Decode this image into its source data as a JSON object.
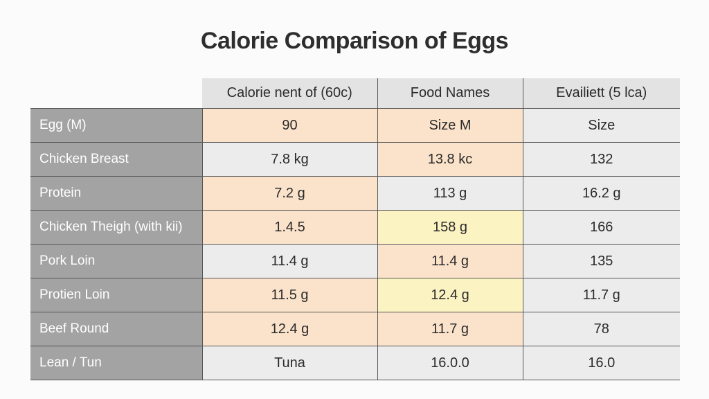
{
  "chart_data": {
    "type": "table",
    "title": "Calorie Comparison of Eggs",
    "columns": [
      "Calorie nent of (60c)",
      "Food Names",
      "Evailiett (5 lca)"
    ],
    "rows": [
      {
        "label": "Egg (M)",
        "cells": [
          "90",
          "Size M",
          "Size"
        ],
        "colors": [
          "#fbe3cb",
          "#fbe3cb",
          "#ececec"
        ]
      },
      {
        "label": "Chicken Breast",
        "cells": [
          "7.8 kg",
          "13.8 kc",
          "132"
        ],
        "colors": [
          "#ececec",
          "#fbe3cb",
          "#ececec"
        ]
      },
      {
        "label": "Protein",
        "cells": [
          "7.2 g",
          "113 g",
          "16.2 g"
        ],
        "colors": [
          "#fbe3cb",
          "#ececec",
          "#ececec"
        ]
      },
      {
        "label": "Chicken Theigh (with kii)",
        "cells": [
          "1.4.5",
          "158 g",
          "166"
        ],
        "colors": [
          "#fbe3cb",
          "#fbf3c2",
          "#ececec"
        ]
      },
      {
        "label": "Pork Loin",
        "cells": [
          "11.4 g",
          "11.4 g",
          "135"
        ],
        "colors": [
          "#ececec",
          "#fbe3cb",
          "#ececec"
        ]
      },
      {
        "label": "Protien Loin",
        "cells": [
          "11.5 g",
          "12.4 g",
          "11.7 g"
        ],
        "colors": [
          "#fbe3cb",
          "#fbf3c2",
          "#ececec"
        ]
      },
      {
        "label": "Beef Round",
        "cells": [
          "12.4 g",
          "11.7 g",
          "78"
        ],
        "colors": [
          "#fbe3cb",
          "#fbe3cb",
          "#ececec"
        ]
      },
      {
        "label": "Lean / Tun",
        "cells": [
          "Tuna",
          "16.0.0",
          "16.0"
        ],
        "colors": [
          "#ececec",
          "#ececec",
          "#ececec"
        ]
      }
    ]
  }
}
